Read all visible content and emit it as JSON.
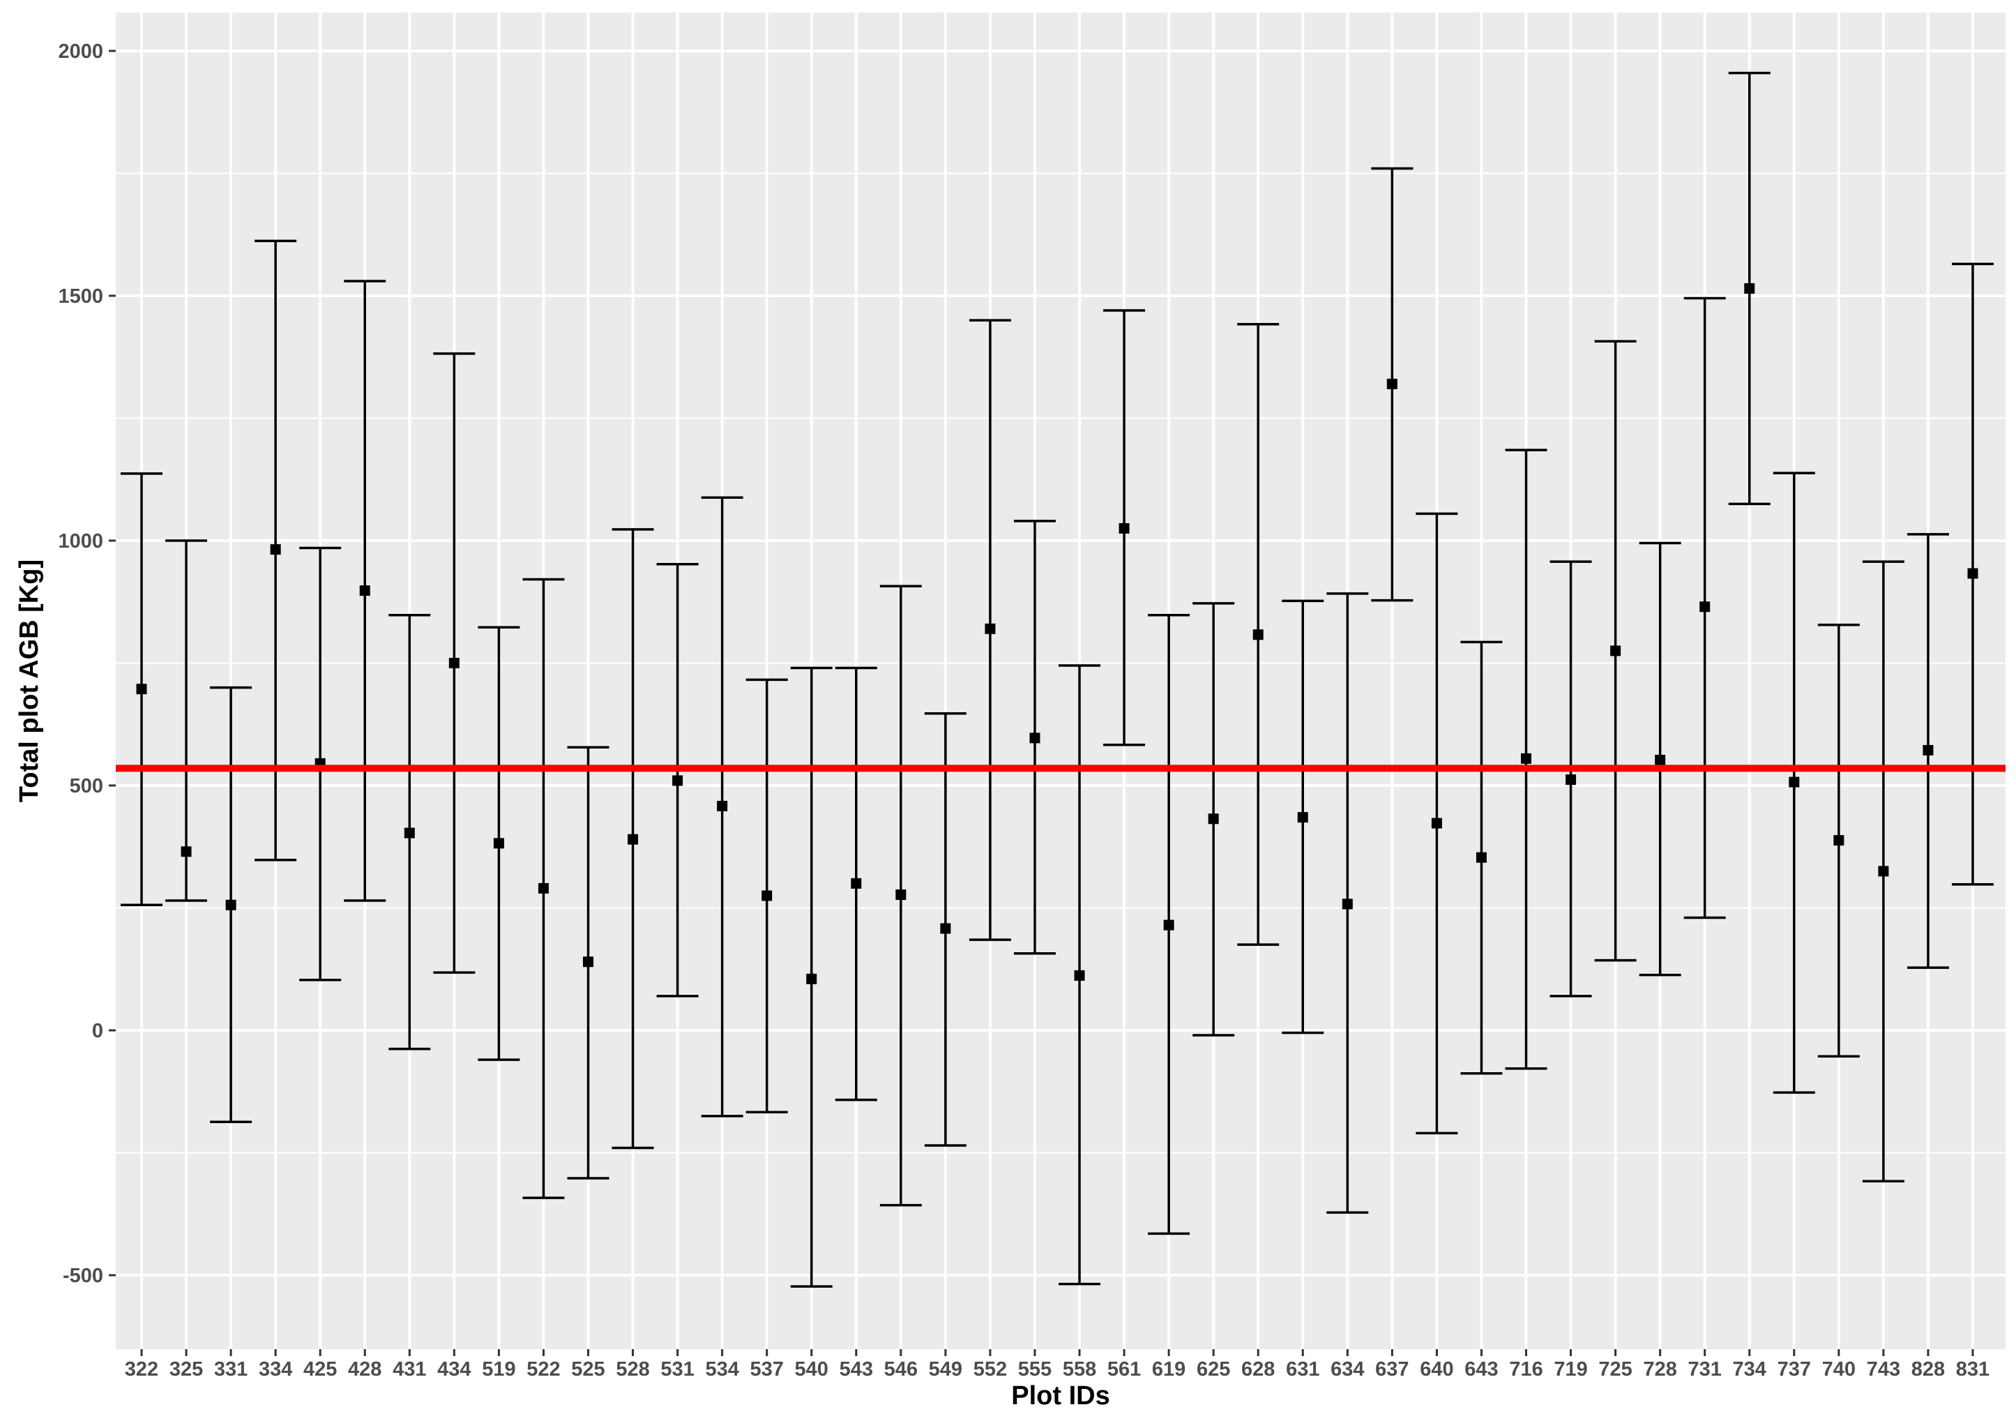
{
  "chart_data": {
    "type": "scatter",
    "xlabel": "Plot IDs",
    "ylabel": "Total plot AGB [Kg]",
    "ylim": [
      -650,
      2080
    ],
    "yticks": [
      -500,
      0,
      500,
      1000,
      1500,
      2000
    ],
    "grid": true,
    "reference_line": {
      "value": 535,
      "color": "#ff0000"
    },
    "colors": {
      "panel_background": "#ebebeb",
      "grid": "#ffffff",
      "points": "#000000",
      "error_bars": "#000000",
      "reference_line": "#ff0000",
      "tick_labels": "#4d4d4d"
    },
    "points": [
      {
        "id": "322",
        "y": 697,
        "low": 256,
        "high": 1137
      },
      {
        "id": "325",
        "y": 365,
        "low": 265,
        "high": 1000
      },
      {
        "id": "331",
        "y": 256,
        "low": -187,
        "high": 700
      },
      {
        "id": "334",
        "y": 982,
        "low": 348,
        "high": 1612
      },
      {
        "id": "425",
        "y": 545,
        "low": 103,
        "high": 985
      },
      {
        "id": "428",
        "y": 898,
        "low": 265,
        "high": 1530
      },
      {
        "id": "431",
        "y": 403,
        "low": -38,
        "high": 848
      },
      {
        "id": "434",
        "y": 750,
        "low": 118,
        "high": 1382
      },
      {
        "id": "519",
        "y": 382,
        "low": -60,
        "high": 823
      },
      {
        "id": "522",
        "y": 290,
        "low": -342,
        "high": 921
      },
      {
        "id": "525",
        "y": 140,
        "low": -302,
        "high": 578
      },
      {
        "id": "528",
        "y": 390,
        "low": -240,
        "high": 1023
      },
      {
        "id": "531",
        "y": 510,
        "low": 70,
        "high": 952
      },
      {
        "id": "534",
        "y": 458,
        "low": -175,
        "high": 1088
      },
      {
        "id": "537",
        "y": 275,
        "low": -167,
        "high": 716
      },
      {
        "id": "540",
        "y": 105,
        "low": -523,
        "high": 740
      },
      {
        "id": "543",
        "y": 300,
        "low": -142,
        "high": 740
      },
      {
        "id": "546",
        "y": 277,
        "low": -357,
        "high": 907
      },
      {
        "id": "549",
        "y": 208,
        "low": -235,
        "high": 647
      },
      {
        "id": "552",
        "y": 820,
        "low": 185,
        "high": 1450
      },
      {
        "id": "555",
        "y": 597,
        "low": 157,
        "high": 1040
      },
      {
        "id": "558",
        "y": 112,
        "low": -518,
        "high": 745
      },
      {
        "id": "561",
        "y": 1025,
        "low": 583,
        "high": 1470
      },
      {
        "id": "619",
        "y": 215,
        "low": -415,
        "high": 848
      },
      {
        "id": "625",
        "y": 432,
        "low": -10,
        "high": 872
      },
      {
        "id": "628",
        "y": 808,
        "low": 175,
        "high": 1442
      },
      {
        "id": "631",
        "y": 435,
        "low": -5,
        "high": 877
      },
      {
        "id": "634",
        "y": 258,
        "low": -372,
        "high": 892
      },
      {
        "id": "637",
        "y": 1320,
        "low": 878,
        "high": 1760
      },
      {
        "id": "640",
        "y": 423,
        "low": -210,
        "high": 1055
      },
      {
        "id": "643",
        "y": 353,
        "low": -88,
        "high": 793
      },
      {
        "id": "716",
        "y": 555,
        "low": -78,
        "high": 1185
      },
      {
        "id": "719",
        "y": 512,
        "low": 70,
        "high": 957
      },
      {
        "id": "725",
        "y": 775,
        "low": 143,
        "high": 1407
      },
      {
        "id": "728",
        "y": 552,
        "low": 113,
        "high": 995
      },
      {
        "id": "731",
        "y": 865,
        "low": 230,
        "high": 1495
      },
      {
        "id": "734",
        "y": 1515,
        "low": 1075,
        "high": 1955
      },
      {
        "id": "737",
        "y": 507,
        "low": -127,
        "high": 1138
      },
      {
        "id": "740",
        "y": 388,
        "low": -53,
        "high": 828
      },
      {
        "id": "743",
        "y": 325,
        "low": -308,
        "high": 957
      },
      {
        "id": "828",
        "y": 572,
        "low": 128,
        "high": 1013
      },
      {
        "id": "831",
        "y": 933,
        "low": 298,
        "high": 1565
      }
    ]
  }
}
